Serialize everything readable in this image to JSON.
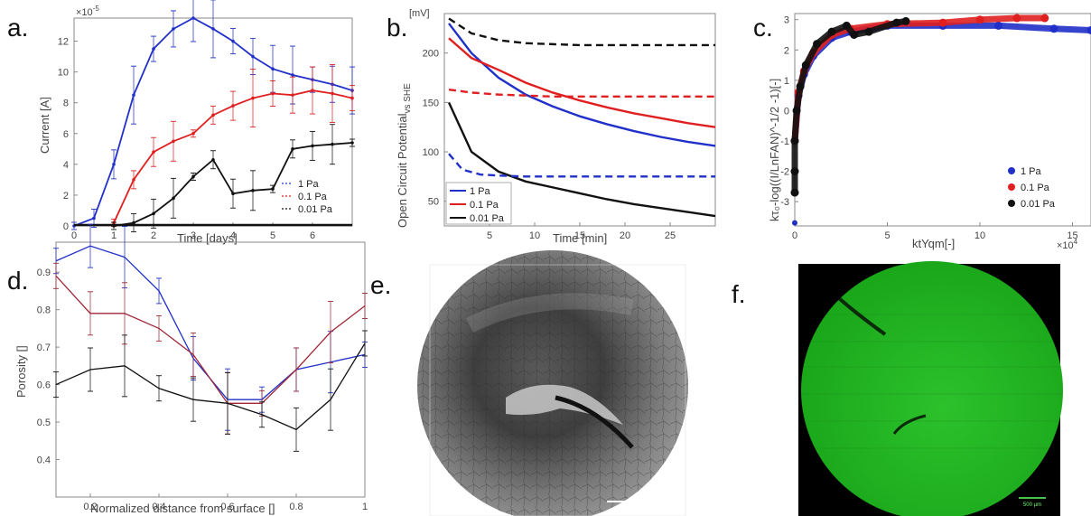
{
  "panels": {
    "a": {
      "letter": "a.",
      "exponent": "×10",
      "exponent_power": "-5",
      "ylabel": "Current [A]",
      "xlabel": "Time [days]",
      "xticks": [
        "0",
        "1",
        "2",
        "3",
        "4",
        "5",
        "6"
      ],
      "yticks": [
        "0",
        "2",
        "4",
        "6",
        "8",
        "10",
        "12"
      ],
      "legend": [
        "1 Pa",
        "0.1 Pa",
        "0.01 Pa"
      ]
    },
    "b": {
      "letter": "b.",
      "ylabel": "Open Circuit Potential",
      "ylabel_sub": "vs SHE",
      "yunit": "[mV]",
      "xlabel": "Time [min]",
      "xticks": [
        "5",
        "10",
        "15",
        "20",
        "25"
      ],
      "yticks": [
        "50",
        "100",
        "150",
        "200"
      ],
      "legend": [
        "1 Pa",
        "0.1 Pa",
        "0.01 Pa"
      ]
    },
    "c": {
      "letter": "c.",
      "ylabel": "kτ₀-log((I/LnFAN)^-1/2 -1)[-]",
      "xlabel": "ktYqm[-]",
      "exponent": "×10",
      "exponent_power": "4",
      "xticks": [
        "0",
        "5",
        "10",
        "15"
      ],
      "yticks": [
        "-3",
        "-2",
        "-1",
        "0",
        "1",
        "2",
        "3"
      ],
      "legend": [
        "1 Pa",
        "0.1 Pa",
        "0.01 Pa"
      ]
    },
    "d": {
      "letter": "d.",
      "ylabel": "Porosity []",
      "xlabel": "Normalized distance from surface []",
      "xticks": [
        "0.2",
        "0.4",
        "0.6",
        "0.8",
        "1"
      ],
      "yticks": [
        "0.4",
        "0.5",
        "0.6",
        "0.7",
        "0.8",
        "0.9"
      ]
    },
    "e": {
      "letter": "e.",
      "scale_label": "500 µm"
    },
    "f": {
      "letter": "f.",
      "scale_label": "500 µm"
    }
  },
  "colors": {
    "blue": "#2030c8",
    "red": "#e02020",
    "black": "#111111",
    "green": "#22b422"
  },
  "chart_data": [
    {
      "type": "line",
      "panel": "a",
      "xlabel": "Time [days]",
      "ylabel": "Current [A]",
      "xlim": [
        0,
        7
      ],
      "ylim": [
        0,
        13.5
      ],
      "y_multiplier": "1e-5",
      "series": [
        {
          "name": "1 Pa",
          "color": "#2030c8",
          "x": [
            0,
            0.5,
            1,
            1.5,
            2,
            2.5,
            3,
            3.5,
            4,
            4.5,
            5,
            5.5,
            6,
            6.5,
            7
          ],
          "y": [
            0,
            0.5,
            4,
            8.5,
            11.5,
            12.8,
            13.5,
            12.8,
            12,
            11,
            10.2,
            9.8,
            9.5,
            9.2,
            8.8
          ]
        },
        {
          "name": "0.1 Pa",
          "color": "#e02020",
          "x": [
            1,
            1.5,
            2,
            2.5,
            3,
            3.5,
            4,
            4.5,
            5,
            5.5,
            6,
            6.5,
            7
          ],
          "y": [
            0.2,
            3,
            4.8,
            5.5,
            6,
            7.2,
            7.8,
            8.3,
            8.6,
            8.5,
            8.8,
            8.6,
            8.3
          ]
        },
        {
          "name": "0.01 Pa",
          "color": "#111111",
          "x": [
            1,
            1.5,
            2,
            2.5,
            3,
            3.5,
            4,
            4.5,
            5,
            5.5,
            6,
            6.5,
            7
          ],
          "y": [
            0,
            0.2,
            0.8,
            1.8,
            3.2,
            4.3,
            2.1,
            2.3,
            2.4,
            5,
            5.2,
            5.3,
            5.4
          ]
        }
      ]
    },
    {
      "type": "line",
      "panel": "b",
      "xlabel": "Time [min]",
      "ylabel": "Open Circuit Potential vs SHE [mV]",
      "xlim": [
        0,
        30
      ],
      "ylim": [
        25,
        240
      ],
      "series": [
        {
          "name": "1 Pa",
          "color": "#2030c8",
          "x": [
            0.5,
            3,
            6,
            9,
            12,
            15,
            18,
            21,
            24,
            27,
            30
          ],
          "y": [
            230,
            200,
            175,
            158,
            146,
            136,
            128,
            121,
            115,
            110,
            106
          ]
        },
        {
          "name": "0.1 Pa",
          "color": "#e02020",
          "x": [
            0.5,
            3,
            6,
            9,
            12,
            15,
            18,
            21,
            24,
            27,
            30
          ],
          "y": [
            215,
            195,
            183,
            170,
            160,
            152,
            145,
            139,
            134,
            129,
            125
          ]
        },
        {
          "name": "0.01 Pa",
          "color": "#111111",
          "x": [
            0.5,
            3,
            6,
            9,
            12,
            15,
            18,
            21,
            24,
            27,
            30
          ],
          "y": [
            150,
            100,
            80,
            70,
            64,
            58,
            52,
            47,
            43,
            39,
            35
          ]
        },
        {
          "style": "dashed",
          "color": "#111111",
          "x": [
            0.5,
            3,
            6,
            9,
            12,
            15,
            30
          ],
          "y": [
            235,
            220,
            213,
            210,
            209,
            208,
            208
          ]
        },
        {
          "style": "dashed",
          "color": "#e02020",
          "x": [
            0.5,
            3,
            6,
            9,
            12,
            15,
            30
          ],
          "y": [
            163,
            160,
            158,
            157,
            156,
            156,
            156
          ]
        },
        {
          "style": "dashed",
          "color": "#2030c8",
          "x": [
            0.5,
            2,
            4,
            6,
            9,
            12,
            30
          ],
          "y": [
            98,
            82,
            77,
            76,
            75,
            75,
            75
          ]
        }
      ]
    },
    {
      "type": "scatter",
      "panel": "c",
      "xlabel": "ktYqm[-]",
      "xlim": [
        0,
        160000
      ],
      "ylim": [
        -3.8,
        3.2
      ],
      "series": [
        {
          "name": "1 Pa",
          "color": "#2030c8",
          "x": [
            0,
            2000,
            5000,
            10000,
            20000,
            30000,
            50000,
            80000,
            110000,
            140000,
            160000,
            0
          ],
          "y": [
            -1,
            0.5,
            1.2,
            1.8,
            2.4,
            2.6,
            2.8,
            2.8,
            2.8,
            2.7,
            2.65,
            -3.7
          ]
        },
        {
          "name": "0.1 Pa",
          "color": "#e02020",
          "x": [
            0,
            2000,
            5000,
            10000,
            20000,
            30000,
            50000,
            80000,
            100000,
            120000,
            135000
          ],
          "y": [
            -1,
            0.6,
            1.3,
            1.9,
            2.5,
            2.7,
            2.85,
            2.9,
            3.0,
            3.05,
            3.05
          ]
        },
        {
          "name": "0.01 Pa",
          "color": "#111111",
          "x": [
            0,
            0,
            0,
            1000,
            3000,
            6000,
            12000,
            20000,
            28000,
            32000,
            40000,
            55000,
            60000
          ],
          "y": [
            -2.7,
            -2,
            -1,
            0,
            0.8,
            1.5,
            2.2,
            2.6,
            2.8,
            2.5,
            2.6,
            2.9,
            2.95
          ]
        }
      ]
    },
    {
      "type": "line",
      "panel": "d",
      "xlabel": "Normalized distance from surface []",
      "ylabel": "Porosity []",
      "xlim": [
        0.1,
        1.0
      ],
      "ylim": [
        0.3,
        0.98
      ],
      "series": [
        {
          "color": "#2030c8",
          "x": [
            0.1,
            0.2,
            0.3,
            0.4,
            0.5,
            0.6,
            0.7,
            0.8,
            0.9,
            1.0
          ],
          "y": [
            0.93,
            0.97,
            0.94,
            0.85,
            0.67,
            0.56,
            0.56,
            0.64,
            0.66,
            0.68
          ]
        },
        {
          "color": "#a02838",
          "x": [
            0.1,
            0.2,
            0.3,
            0.4,
            0.5,
            0.6,
            0.7,
            0.8,
            0.9,
            1.0
          ],
          "y": [
            0.89,
            0.79,
            0.79,
            0.75,
            0.68,
            0.55,
            0.55,
            0.64,
            0.74,
            0.81
          ]
        },
        {
          "color": "#111111",
          "x": [
            0.1,
            0.2,
            0.3,
            0.4,
            0.5,
            0.6,
            0.7,
            0.8,
            0.9,
            1.0
          ],
          "y": [
            0.6,
            0.64,
            0.65,
            0.59,
            0.56,
            0.55,
            0.52,
            0.48,
            0.56,
            0.71
          ]
        }
      ]
    }
  ]
}
